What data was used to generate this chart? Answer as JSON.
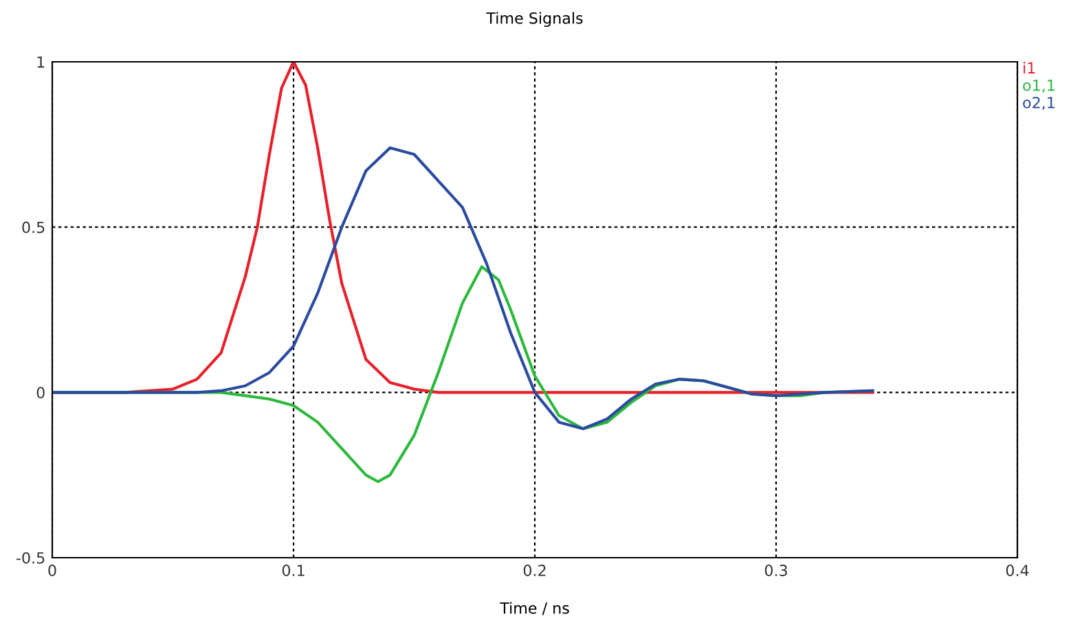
{
  "chart_data": {
    "type": "line",
    "title": "Time Signals",
    "xlabel": "Time / ns",
    "xlim": [
      0,
      0.4
    ],
    "ylim": [
      -0.5,
      1
    ],
    "xticks": [
      0,
      0.1,
      0.2,
      0.3,
      0.4
    ],
    "yticks": [
      {
        "value": -0.5,
        "label": "-0.5"
      },
      0,
      0.5,
      1
    ],
    "grid": true,
    "legend": "top right",
    "line_style": "solid",
    "series": [
      {
        "name": "i1",
        "color": "#e8202a",
        "x": [
          0,
          0.03,
          0.05,
          0.06,
          0.07,
          0.08,
          0.085,
          0.09,
          0.095,
          0.1,
          0.105,
          0.11,
          0.115,
          0.12,
          0.13,
          0.14,
          0.15,
          0.16,
          0.34
        ],
        "values": [
          0,
          0,
          0.01,
          0.04,
          0.12,
          0.35,
          0.5,
          0.72,
          0.92,
          1,
          0.93,
          0.74,
          0.52,
          0.33,
          0.1,
          0.03,
          0.01,
          0,
          0
        ]
      },
      {
        "name": "o1,1",
        "color": "#2db83d",
        "x": [
          0,
          0.07,
          0.08,
          0.09,
          0.1,
          0.11,
          0.12,
          0.13,
          0.135,
          0.14,
          0.15,
          0.16,
          0.17,
          0.178,
          0.185,
          0.19,
          0.2,
          0.21,
          0.22,
          0.23,
          0.24,
          0.25,
          0.26,
          0.27,
          0.28,
          0.29,
          0.3,
          0.31,
          0.32,
          0.34
        ],
        "values": [
          0,
          0,
          -0.01,
          -0.02,
          -0.04,
          -0.09,
          -0.17,
          -0.25,
          -0.27,
          -0.25,
          -0.13,
          0.06,
          0.27,
          0.38,
          0.34,
          0.25,
          0.05,
          -0.07,
          -0.11,
          -0.09,
          -0.03,
          0.02,
          0.04,
          0.035,
          0.015,
          -0.005,
          -0.01,
          -0.01,
          0,
          0.005
        ]
      },
      {
        "name": "o2,1",
        "color": "#2b4ba0",
        "x": [
          0,
          0.06,
          0.07,
          0.08,
          0.09,
          0.1,
          0.11,
          0.12,
          0.13,
          0.14,
          0.15,
          0.16,
          0.17,
          0.18,
          0.19,
          0.2,
          0.21,
          0.22,
          0.23,
          0.24,
          0.25,
          0.26,
          0.27,
          0.28,
          0.29,
          0.3,
          0.31,
          0.32,
          0.34
        ],
        "values": [
          0,
          0,
          0.005,
          0.02,
          0.06,
          0.14,
          0.3,
          0.5,
          0.67,
          0.74,
          0.72,
          0.64,
          0.56,
          0.39,
          0.18,
          0,
          -0.09,
          -0.11,
          -0.08,
          -0.02,
          0.025,
          0.04,
          0.035,
          0.015,
          -0.005,
          -0.01,
          -0.005,
          0,
          0.005
        ]
      }
    ]
  }
}
